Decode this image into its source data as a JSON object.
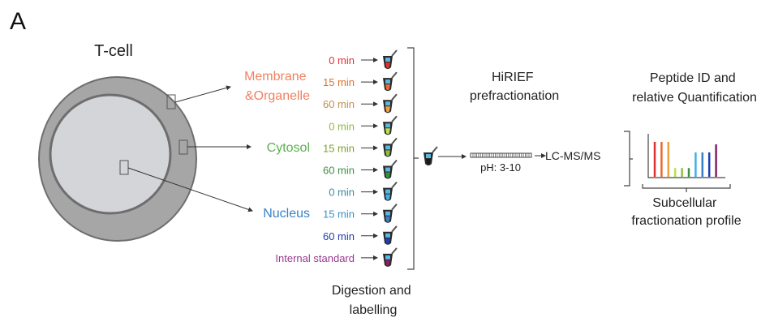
{
  "panel_label": "A",
  "cell": {
    "title": "T-cell",
    "outer_color": "#a6a6a6",
    "inner_color": "#d4d5d8",
    "edge_color": "#6e6e6e"
  },
  "compartments": [
    {
      "label_lines": [
        "Membrane",
        "&Organelle"
      ],
      "color": "#f08060"
    },
    {
      "label_lines": [
        "Cytosol"
      ],
      "color": "#5ab050"
    },
    {
      "label_lines": [
        "Nucleus"
      ],
      "color": "#3a80c8"
    }
  ],
  "samples": [
    {
      "label": "0 min",
      "label_color": "#e03030",
      "tube_color": "#e03030"
    },
    {
      "label": "15 min",
      "label_color": "#e0702c",
      "tube_color": "#e86a30"
    },
    {
      "label": "60 min",
      "label_color": "#c09050",
      "tube_color": "#f0a040"
    },
    {
      "label": "0 min",
      "label_color": "#90b840",
      "tube_color": "#b8e050"
    },
    {
      "label": "15 min",
      "label_color": "#80a030",
      "tube_color": "#8ac040"
    },
    {
      "label": "60 min",
      "label_color": "#3a9040",
      "tube_color": "#3a9040"
    },
    {
      "label": "0 min",
      "label_color": "#3a8aa0",
      "tube_color": "#40b0e8"
    },
    {
      "label": "15 min",
      "label_color": "#3a90c8",
      "tube_color": "#3a80c8"
    },
    {
      "label": "60 min",
      "label_color": "#2040b0",
      "tube_color": "#2040b0"
    },
    {
      "label": "Internal standard",
      "label_color": "#9a3a90",
      "tube_color": "#8a2060"
    }
  ],
  "digestion_label": [
    "Digestion and",
    "labelling"
  ],
  "hirief": {
    "title_lines": [
      "HiRIEF",
      "prefractionation"
    ],
    "ph_label": "pH: 3-10"
  },
  "lcms_label": "LC-MS/MS",
  "quant": {
    "title_lines": [
      "Peptide ID and",
      "relative Quantification"
    ],
    "profile_label_lines": [
      "Subcellular",
      "fractionation profile"
    ],
    "bar_levels": [
      1,
      1,
      1,
      0.25,
      0.25,
      0.25,
      0.7,
      0.7,
      0.7,
      0.93
    ]
  }
}
